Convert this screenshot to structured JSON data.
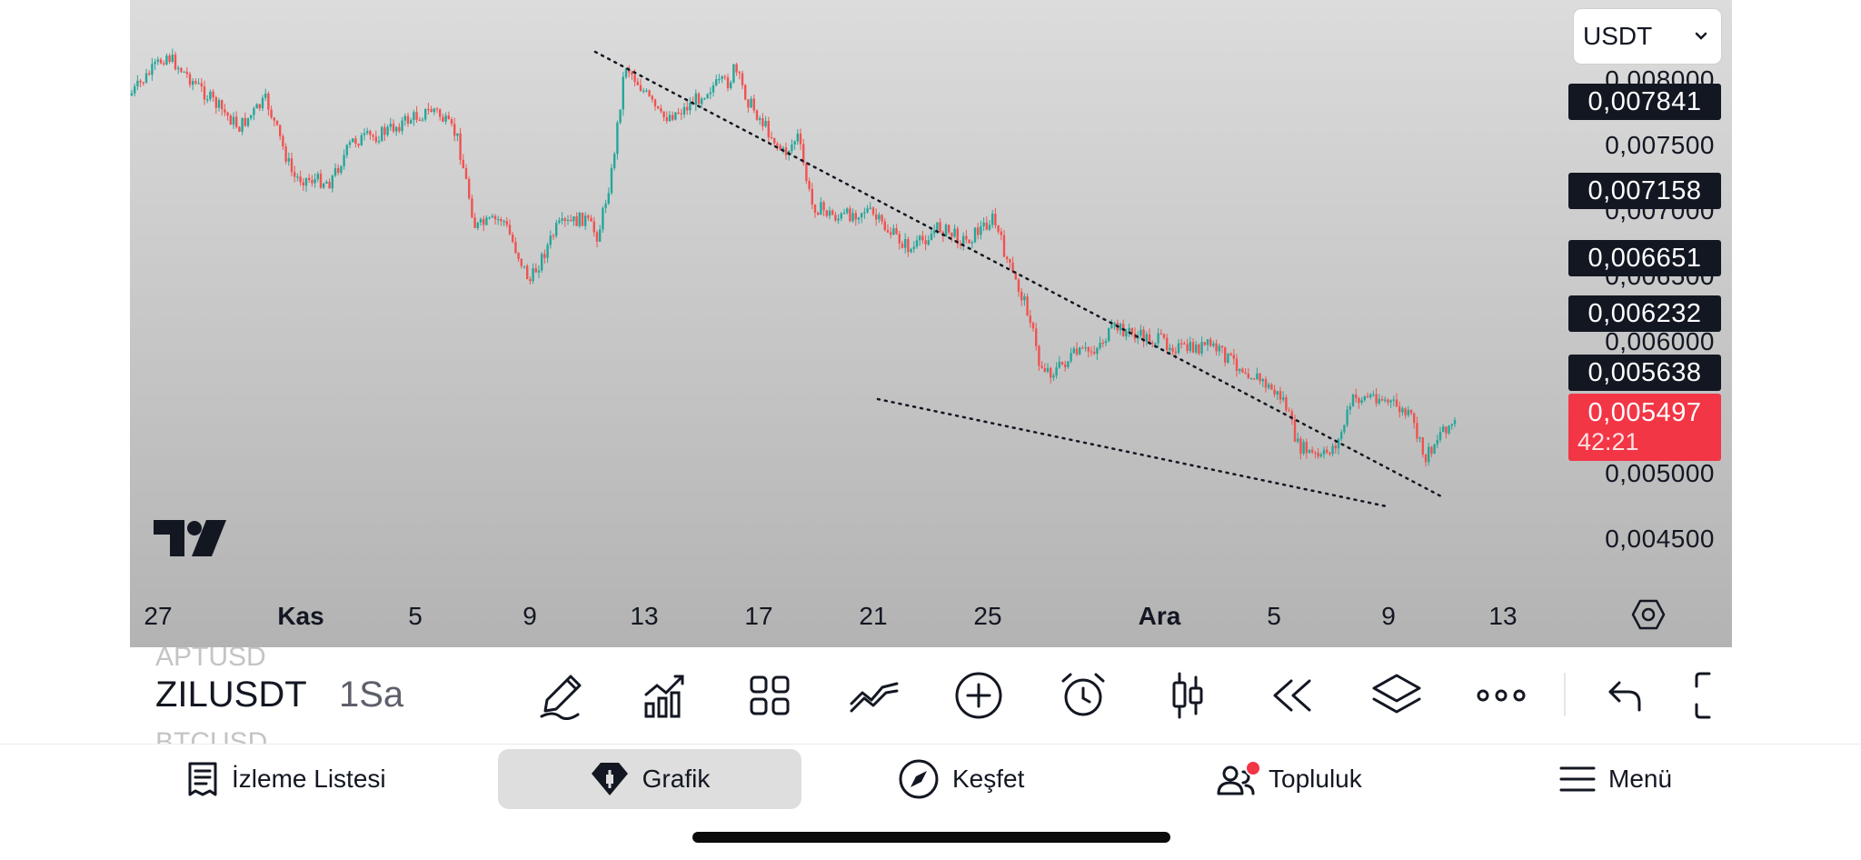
{
  "chart": {
    "currency_select": "USDT",
    "price_ticks": [
      "0,008000",
      "0,007500",
      "0,007000",
      "0,006500",
      "0,006000",
      "0,005000",
      "0,004500"
    ],
    "price_tags": [
      "0,007841",
      "0,007158",
      "0,006651",
      "0,006232",
      "0,005638"
    ],
    "current_price": "0,005497",
    "countdown": "42:21",
    "date_ticks": [
      "27",
      "Kas",
      "5",
      "9",
      "13",
      "17",
      "21",
      "25",
      "Ara",
      "5",
      "9",
      "13"
    ],
    "colors": {
      "up": "#26a69a",
      "down": "#ef5350",
      "current": "#f23645",
      "tag_bg": "#131722"
    }
  },
  "toolbar": {
    "ghost_symbol_above": "APTUSD",
    "symbol": "ZILUSDT",
    "interval": "1Sa",
    "ghost_symbol_below": "BTCUSD",
    "icons": [
      "pen-icon",
      "indicators-icon",
      "grid-icon",
      "patterns-icon",
      "plus-icon",
      "alarm-icon",
      "candles-icon",
      "replay-icon",
      "layers-icon",
      "more-icon",
      "undo-icon",
      "fullscreen-icon"
    ]
  },
  "nav": {
    "watchlist": "İzleme Listesi",
    "chart": "Grafik",
    "explore": "Keşfet",
    "community": "Topluluk",
    "menu": "Menü"
  }
}
